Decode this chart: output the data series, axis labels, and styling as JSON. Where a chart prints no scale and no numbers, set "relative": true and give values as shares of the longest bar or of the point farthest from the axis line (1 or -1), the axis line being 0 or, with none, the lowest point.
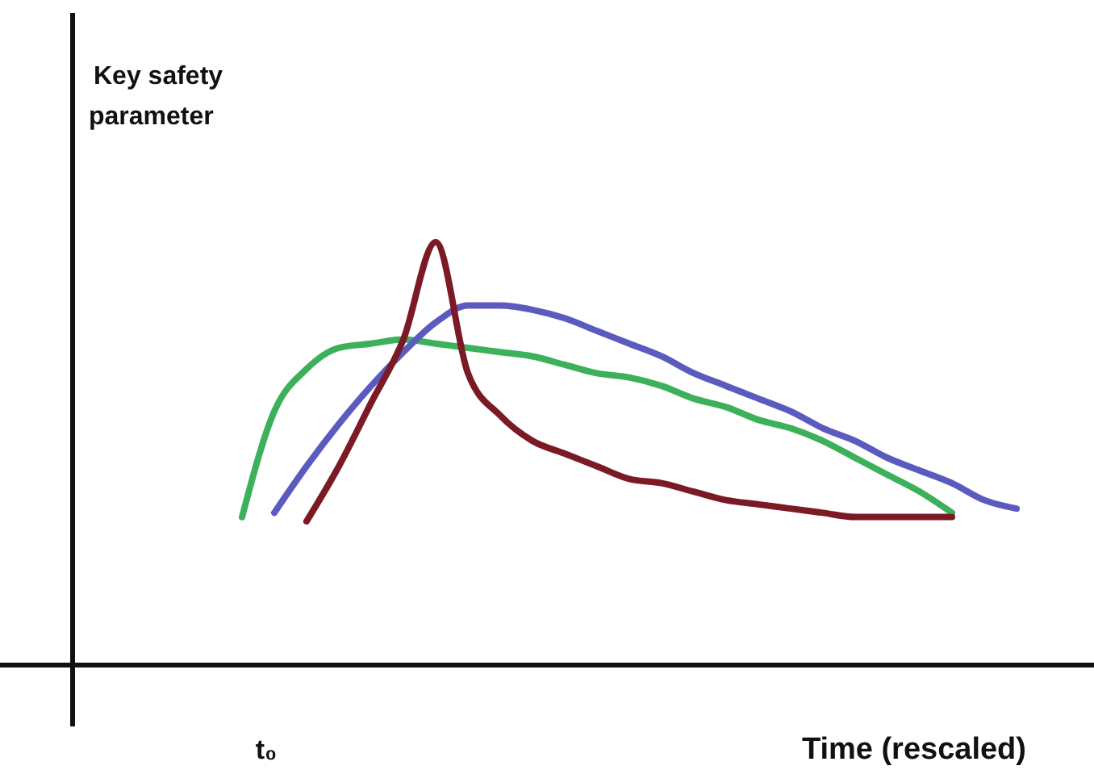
{
  "chart_data": {
    "type": "line",
    "relative": true,
    "ylabel": "Key safety parameter",
    "xlabel": "Time (rescaled)",
    "annotations": [
      "t₀"
    ],
    "categories": [
      null,
      null,
      null,
      null,
      null,
      null,
      null,
      null,
      null,
      null,
      null,
      null,
      null,
      null,
      null,
      null,
      null,
      null,
      null,
      null,
      null,
      null,
      null,
      null,
      null,
      null,
      null,
      null,
      null,
      null,
      null,
      null
    ],
    "series": [
      {
        "color": "#3cb05a",
        "values": [
          null,
          null,
          null,
          null,
          null,
          0.35,
          0.6,
          0.7,
          0.75,
          0.76,
          0.77,
          0.76,
          0.75,
          0.74,
          0.73,
          0.71,
          0.69,
          0.68,
          0.66,
          0.63,
          0.61,
          0.58,
          0.56,
          0.53,
          0.49,
          0.45,
          0.41,
          0.36,
          null,
          null,
          null,
          null
        ]
      },
      {
        "color": "#5b5bbf",
        "values": [
          null,
          null,
          null,
          null,
          null,
          null,
          0.36,
          0.47,
          0.57,
          0.66,
          0.74,
          0.81,
          0.85,
          0.85,
          0.84,
          0.82,
          0.79,
          0.76,
          0.73,
          0.69,
          0.66,
          0.63,
          0.6,
          0.56,
          0.53,
          0.49,
          0.46,
          0.43,
          0.39,
          0.37,
          null,
          null
        ]
      },
      {
        "color": "#7b1a24",
        "values": [
          null,
          null,
          null,
          null,
          null,
          null,
          null,
          0.34,
          0.47,
          0.62,
          0.77,
          1.0,
          0.69,
          0.59,
          0.53,
          0.5,
          0.47,
          0.44,
          0.43,
          0.41,
          0.39,
          0.38,
          0.37,
          0.36,
          0.35,
          0.35,
          0.35,
          0.35,
          null,
          null,
          null,
          null
        ]
      }
    ],
    "line_style": "solid"
  }
}
